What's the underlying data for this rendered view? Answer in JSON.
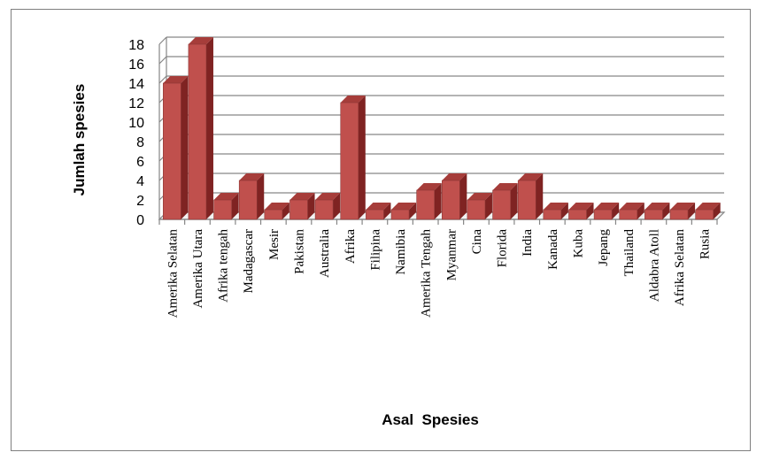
{
  "chart_data": {
    "type": "bar",
    "title": "",
    "xlabel": "Asal  Spesies",
    "ylabel": "Jumlah spesies",
    "ylim": [
      0,
      18
    ],
    "yticks": [
      "0",
      "2",
      "4",
      "6",
      "8",
      "10",
      "12",
      "14",
      "16",
      "18"
    ],
    "grid": true,
    "legend": "none",
    "bar_color": "#c0504d",
    "categories": [
      "Amerika Selatan",
      "Amerika Utara",
      "Afrika tengah",
      "Madagascar",
      "Mesir",
      "Pakistan",
      "Australia",
      "Afrika",
      "Filipina",
      "Namibia",
      "Amerika Tengah",
      "Myanmar",
      "Cina",
      "Florida",
      "India",
      "Kanada",
      "Kuba",
      "Jepang",
      "Thailand",
      "Aldabra Atoll",
      "Afrika Selatan",
      "Rusia"
    ],
    "values": [
      14,
      18,
      2,
      4,
      1,
      2,
      2,
      12,
      1,
      1,
      3,
      4,
      2,
      3,
      4,
      1,
      1,
      1,
      1,
      1,
      1,
      1
    ]
  }
}
